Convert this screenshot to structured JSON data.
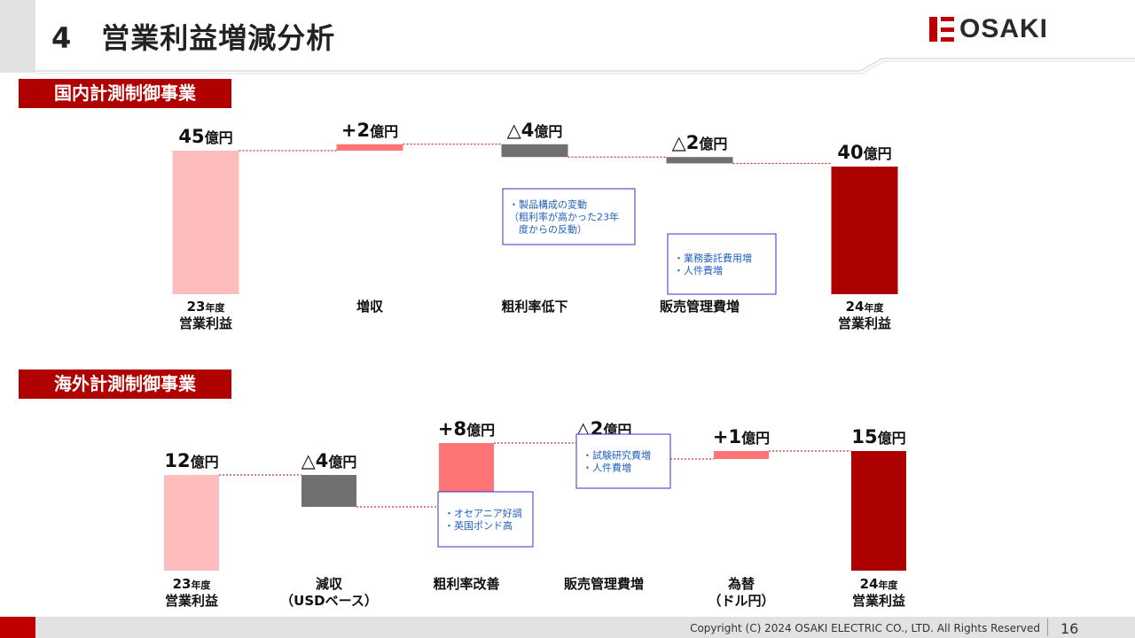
{
  "page": {
    "title": "4　営業利益増減分析",
    "logo": "OSAKI",
    "copyright": "Copyright (C) 2024 OSAKI ELECTRIC CO., LTD. All Rights Reserved",
    "page_number": "16"
  },
  "colors": {
    "start": "#ffbcbc",
    "increase": "#ff7575",
    "decrease": "#707070",
    "end": "#ad0000",
    "accent": "#c00000",
    "note_border": "#3333cc",
    "note_text": "#1f5fbf"
  },
  "chart_data": [
    {
      "type": "waterfall",
      "title": "国内計測制御事業",
      "unit": "億円",
      "categories": [
        [
          "23年度",
          "営業利益"
        ],
        [
          "増収"
        ],
        [
          "粗利率低下"
        ],
        [
          "販売管理費増"
        ],
        [
          "24年度",
          "営業利益"
        ]
      ],
      "values": [
        45,
        2,
        -4,
        -2,
        40
      ],
      "kinds": [
        "total",
        "increase",
        "decrease",
        "decrease",
        "total"
      ],
      "labels": [
        "45億円",
        "+2億円",
        "△4億円",
        "△2億円",
        "40億円"
      ],
      "notes": [
        {
          "index": 2,
          "lines": [
            "・製品構成の変動",
            "（粗利率が高かった23年",
            "　度からの反動）"
          ]
        },
        {
          "index": 3,
          "lines": [
            "・業務委託費用増",
            "・人件費増"
          ]
        }
      ]
    },
    {
      "type": "waterfall",
      "title": "海外計測制御事業",
      "unit": "億円",
      "categories": [
        [
          "23年度",
          "営業利益"
        ],
        [
          "減収",
          "（USDベース）"
        ],
        [
          "粗利率改善"
        ],
        [
          "販売管理費増"
        ],
        [
          "為替",
          "（ドル円）"
        ],
        [
          "24年度",
          "営業利益"
        ]
      ],
      "values": [
        12,
        -4,
        8,
        -2,
        1,
        15
      ],
      "kinds": [
        "total",
        "decrease",
        "increase",
        "decrease",
        "increase",
        "total"
      ],
      "labels": [
        "12億円",
        "△4億円",
        "+8億円",
        "△2億円",
        "+1億円",
        "15億円"
      ],
      "notes": [
        {
          "index": 2,
          "lines": [
            "・オセアニア好調",
            "・英国ポンド高"
          ]
        },
        {
          "index": 3,
          "lines": [
            "・試験研究費増",
            "・人件費増"
          ]
        }
      ]
    }
  ]
}
